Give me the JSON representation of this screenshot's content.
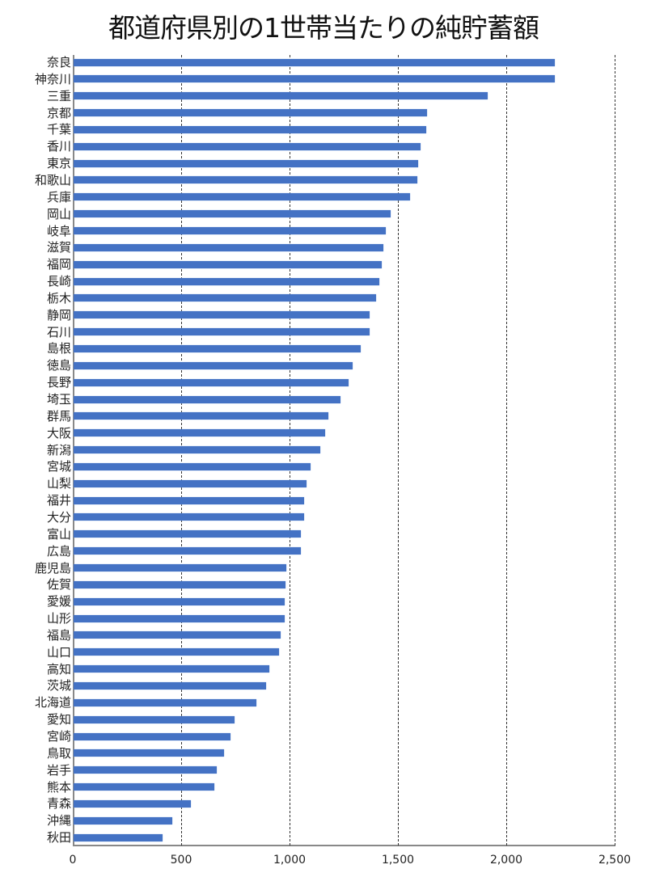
{
  "chart_data": {
    "type": "bar",
    "orientation": "horizontal",
    "title": "都道府県別の1世帯当たりの純貯蓄額",
    "xlabel": "",
    "ylabel": "",
    "xlim": [
      0,
      2500
    ],
    "xticks": [
      0,
      500,
      1000,
      1500,
      2000,
      2500
    ],
    "xtick_labels": [
      "0",
      "500",
      "1,000",
      "1,500",
      "2,000",
      "2,500"
    ],
    "grid": "vertical dashed",
    "legend": "none",
    "bar_color": "#4472c4",
    "categories": [
      "奈良",
      "神奈川",
      "三重",
      "京都",
      "千葉",
      "香川",
      "東京",
      "和歌山",
      "兵庫",
      "岡山",
      "岐阜",
      "滋賀",
      "福岡",
      "長崎",
      "栃木",
      "静岡",
      "石川",
      "島根",
      "徳島",
      "長野",
      "埼玉",
      "群馬",
      "大阪",
      "新潟",
      "宮城",
      "山梨",
      "福井",
      "大分",
      "富山",
      "広島",
      "鹿児島",
      "佐賀",
      "愛媛",
      "山形",
      "福島",
      "山口",
      "高知",
      "茨城",
      "北海道",
      "愛知",
      "宮崎",
      "鳥取",
      "岩手",
      "熊本",
      "青森",
      "沖縄",
      "秋田"
    ],
    "values": [
      2220,
      2220,
      1910,
      1631,
      1627,
      1601,
      1590,
      1586,
      1552,
      1463,
      1440,
      1429,
      1422,
      1410,
      1395,
      1366,
      1366,
      1325,
      1287,
      1269,
      1231,
      1175,
      1160,
      1138,
      1093,
      1075,
      1063,
      1063,
      1049,
      1049,
      981,
      978,
      974,
      974,
      955,
      948,
      903,
      888,
      843,
      743,
      724,
      694,
      660,
      649,
      541,
      455,
      410
    ]
  }
}
